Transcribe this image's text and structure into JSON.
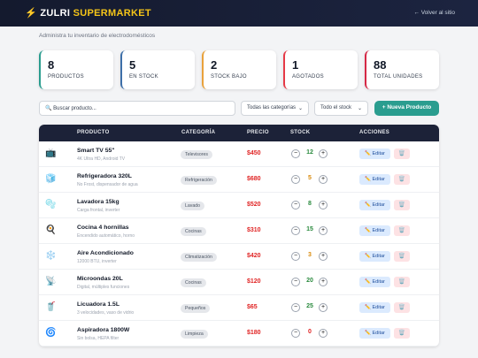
{
  "header": {
    "logo_icon": "⚡",
    "brand": "ZULRI",
    "brand_accent": "SUPERMARKET",
    "back_link": "← Volver al sitio"
  },
  "subtitle": "Administra tu inventario de electrodomésticos",
  "stats": [
    {
      "value": 8,
      "label": "PRODUCTOS",
      "color": "#2a9d8f"
    },
    {
      "value": 5,
      "label": "EN STOCK",
      "color": "#3d6fa8"
    },
    {
      "value": 2,
      "label": "STOCK BAJO",
      "color": "#e9a23b"
    },
    {
      "value": 1,
      "label": "AGOTADOS",
      "color": "#e63946"
    },
    {
      "value": 88,
      "label": "TOTAL UNIDADES",
      "color": "#d62846"
    }
  ],
  "toolbar": {
    "search_placeholder": "🔍 Buscar producto...",
    "category_filter": "Todas las categorías",
    "stock_filter": "Todo el stock",
    "new_button": "+ Nueva Producto"
  },
  "table": {
    "columns": [
      "PRODUCTO",
      "CATEGORÍA",
      "PRECIO",
      "STOCK",
      "ACCIONES"
    ],
    "decrement": "−",
    "increment": "+",
    "edit": "✏️ Editar",
    "delete": "🗑️",
    "rows": [
      {
        "icon": "📺",
        "name": "Smart TV 55\"",
        "description": "4K Ultra HD, Android TV",
        "category": "Televisores",
        "price": "$450",
        "stock": 12,
        "stock_color": "#2a8a3e"
      },
      {
        "icon": "🧊",
        "name": "Refrigeradora 320L",
        "description": "No Frost, dispensador de agua",
        "category": "Refrigeración",
        "price": "$680",
        "stock": 5,
        "stock_color": "#d98a0b"
      },
      {
        "icon": "🫧",
        "name": "Lavadora 15kg",
        "description": "Carga frontal, inverter",
        "category": "Lavado",
        "price": "$520",
        "stock": 8,
        "stock_color": "#2a8a3e"
      },
      {
        "icon": "🍳",
        "name": "Cocina 4 hornillas",
        "description": "Encendido automático, horno",
        "category": "Cocinas",
        "price": "$310",
        "stock": 15,
        "stock_color": "#2a8a3e"
      },
      {
        "icon": "❄️",
        "name": "Aire Acondicionado",
        "description": "12000 BTU, inverter",
        "category": "Climatización",
        "price": "$420",
        "stock": 3,
        "stock_color": "#d98a0b"
      },
      {
        "icon": "📡",
        "name": "Microondas 20L",
        "description": "Digital, múltiples funciones",
        "category": "Cocinas",
        "price": "$120",
        "stock": 20,
        "stock_color": "#2a8a3e"
      },
      {
        "icon": "🥤",
        "name": "Licuadora 1.5L",
        "description": "3 velocidades, vaso de vidrio",
        "category": "Pequeños",
        "price": "$65",
        "stock": 25,
        "stock_color": "#2a8a3e"
      },
      {
        "icon": "🌀",
        "name": "Aspiradora 1800W",
        "description": "Sin bolsa, HEPA filter",
        "category": "Limpieza",
        "price": "$180",
        "stock": 0,
        "stock_color": "#e02424"
      }
    ]
  }
}
